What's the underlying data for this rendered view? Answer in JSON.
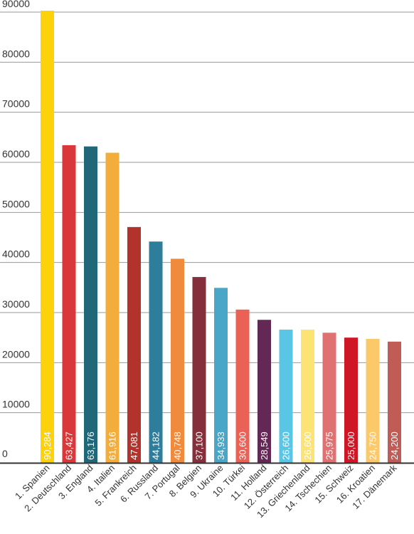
{
  "chart_data": {
    "type": "bar",
    "title": "",
    "xlabel": "",
    "ylabel": "",
    "ylim": [
      0,
      90000
    ],
    "yticks": [
      0,
      10000,
      20000,
      30000,
      40000,
      50000,
      60000,
      70000,
      80000,
      90000
    ],
    "yticklabels": [
      "0",
      "10000",
      "20000",
      "30000",
      "40000",
      "50000",
      "60000",
      "70000",
      "80000",
      "90000"
    ],
    "grid": true,
    "categories": [
      "1. Spanien",
      "2. Deutschland",
      "3. England",
      "4. Italien",
      "5. Frankreich",
      "6. Russland",
      "7. Portugal",
      "8. Belgien",
      "9. Ukraine",
      "10. Türkei",
      "11. Holland",
      "12. Österreich",
      "13. Griechenland",
      "14. Tschechien",
      "15. Schweiz",
      "16. Kroatien",
      "17. Dänemark"
    ],
    "values": [
      90284,
      63427,
      63176,
      61916,
      47081,
      44182,
      40748,
      37100,
      34933,
      30600,
      28549,
      26600,
      26600,
      25975,
      25000,
      24750,
      24200
    ],
    "value_labels": [
      "90,284",
      "63,427",
      "63,176",
      "61,916",
      "47,081",
      "44,182",
      "40,748",
      "37,100",
      "34,933",
      "30,600",
      "28,549",
      "26,600",
      "26,600",
      "25,975",
      "25,000",
      "24,750",
      "24,200"
    ],
    "colors": [
      "#FDD20A",
      "#D8383A",
      "#20677A",
      "#F3AD3A",
      "#B2332C",
      "#2E7E9B",
      "#F08A3C",
      "#862F3C",
      "#49A6C8",
      "#EA6256",
      "#642854",
      "#59C6E6",
      "#FCE374",
      "#E07172",
      "#CF1625",
      "#FBC86A",
      "#C05B56"
    ]
  }
}
